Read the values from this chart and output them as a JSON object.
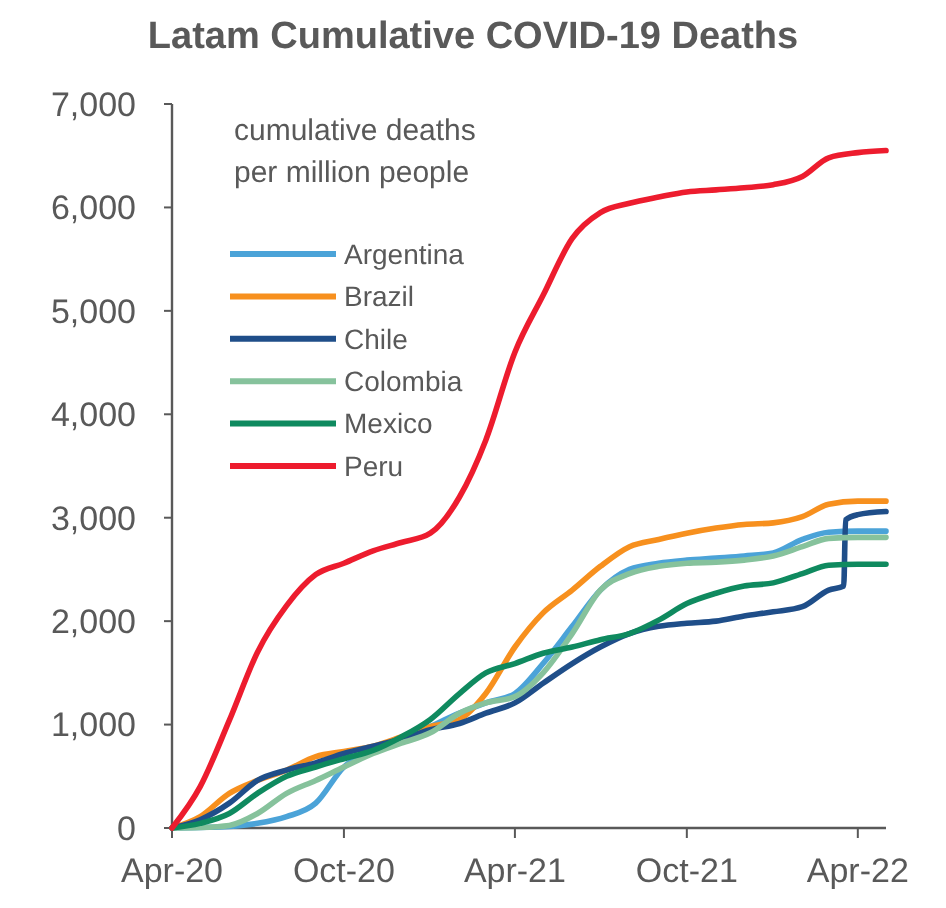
{
  "chart_data": {
    "type": "line",
    "title": "Latam Cumulative COVID-19 Deaths",
    "ylabel": "cumulative deaths\nper million people",
    "legend": "top left",
    "grid": false,
    "line_style": "solid",
    "marker": "none",
    "x": [
      "2020-04",
      "2020-05",
      "2020-06",
      "2020-07",
      "2020-08",
      "2020-09",
      "2020-10",
      "2020-11",
      "2020-12",
      "2021-01",
      "2021-02",
      "2021-03",
      "2021-04",
      "2021-05",
      "2021-06",
      "2021-07",
      "2021-08",
      "2021-09",
      "2021-10",
      "2021-11",
      "2021-12",
      "2022-01",
      "2022-02",
      "2022-03",
      "2022-04",
      "2022-05"
    ],
    "xlim": [
      "2020-04",
      "2022-05"
    ],
    "xticks": [
      {
        "value": "2020-04",
        "label": "Apr-20"
      },
      {
        "value": "2020-10",
        "label": "Oct-20"
      },
      {
        "value": "2021-04",
        "label": "Apr-21"
      },
      {
        "value": "2021-10",
        "label": "Oct-21"
      },
      {
        "value": "2022-04",
        "label": "Apr-22"
      }
    ],
    "ylim": [
      0,
      7000
    ],
    "yticks": [
      {
        "value": 0,
        "label": "0"
      },
      {
        "value": 1000,
        "label": "1,000"
      },
      {
        "value": 2000,
        "label": "2,000"
      },
      {
        "value": 3000,
        "label": "3,000"
      },
      {
        "value": 4000,
        "label": "4,000"
      },
      {
        "value": 5000,
        "label": "5,000"
      },
      {
        "value": 6000,
        "label": "6,000"
      },
      {
        "value": 7000,
        "label": "7,000"
      }
    ],
    "series": [
      {
        "name": "Argentina",
        "color": "#4ba3d8",
        "values": [
          0,
          5,
          15,
          45,
          110,
          240,
          590,
          750,
          850,
          980,
          1110,
          1210,
          1300,
          1590,
          1950,
          2300,
          2500,
          2560,
          2590,
          2610,
          2630,
          2660,
          2790,
          2860,
          2870,
          2870
        ]
      },
      {
        "name": "Brazil",
        "color": "#f7901e",
        "values": [
          0,
          110,
          335,
          460,
          560,
          690,
          740,
          790,
          880,
          980,
          1050,
          1300,
          1750,
          2080,
          2300,
          2530,
          2720,
          2790,
          2850,
          2900,
          2935,
          2950,
          3010,
          3130,
          3160,
          3160
        ]
      },
      {
        "name": "Chile",
        "color": "#1f4e89",
        "x": [
          "2020-04",
          "2020-05",
          "2020-06",
          "2020-07",
          "2020-08",
          "2020-09",
          "2020-10",
          "2020-11",
          "2020-12",
          "2021-01",
          "2021-02",
          "2021-03",
          "2021-04",
          "2021-05",
          "2021-06",
          "2021-07",
          "2021-08",
          "2021-09",
          "2021-10",
          "2021-11",
          "2021-12",
          "2022-01",
          "2022-02",
          "2022-03",
          "2022-03-17",
          "2022-03-19",
          "2022-04",
          "2022-05"
        ],
        "values": [
          0,
          80,
          240,
          460,
          560,
          630,
          720,
          790,
          860,
          950,
          1010,
          1110,
          1210,
          1400,
          1590,
          1750,
          1880,
          1950,
          1980,
          2000,
          2050,
          2090,
          2140,
          2300,
          2340,
          2980,
          3030,
          3060
        ]
      },
      {
        "name": "Colombia",
        "color": "#86c29c",
        "values": [
          0,
          5,
          25,
          140,
          335,
          460,
          590,
          720,
          820,
          920,
          1110,
          1210,
          1270,
          1500,
          1880,
          2300,
          2460,
          2530,
          2560,
          2570,
          2590,
          2630,
          2720,
          2800,
          2810,
          2810
        ]
      },
      {
        "name": "Mexico",
        "color": "#0f8a5f",
        "values": [
          0,
          45,
          140,
          335,
          500,
          590,
          670,
          750,
          880,
          1050,
          1300,
          1500,
          1590,
          1690,
          1750,
          1820,
          1880,
          2010,
          2170,
          2270,
          2340,
          2370,
          2460,
          2540,
          2550,
          2550
        ]
      },
      {
        "name": "Peru",
        "color": "#ed1c2e",
        "values": [
          0,
          400,
          1040,
          1700,
          2150,
          2450,
          2560,
          2680,
          2760,
          2850,
          3200,
          3750,
          4600,
          5150,
          5700,
          5950,
          6040,
          6100,
          6150,
          6170,
          6190,
          6220,
          6300,
          6480,
          6530,
          6550
        ]
      }
    ]
  }
}
